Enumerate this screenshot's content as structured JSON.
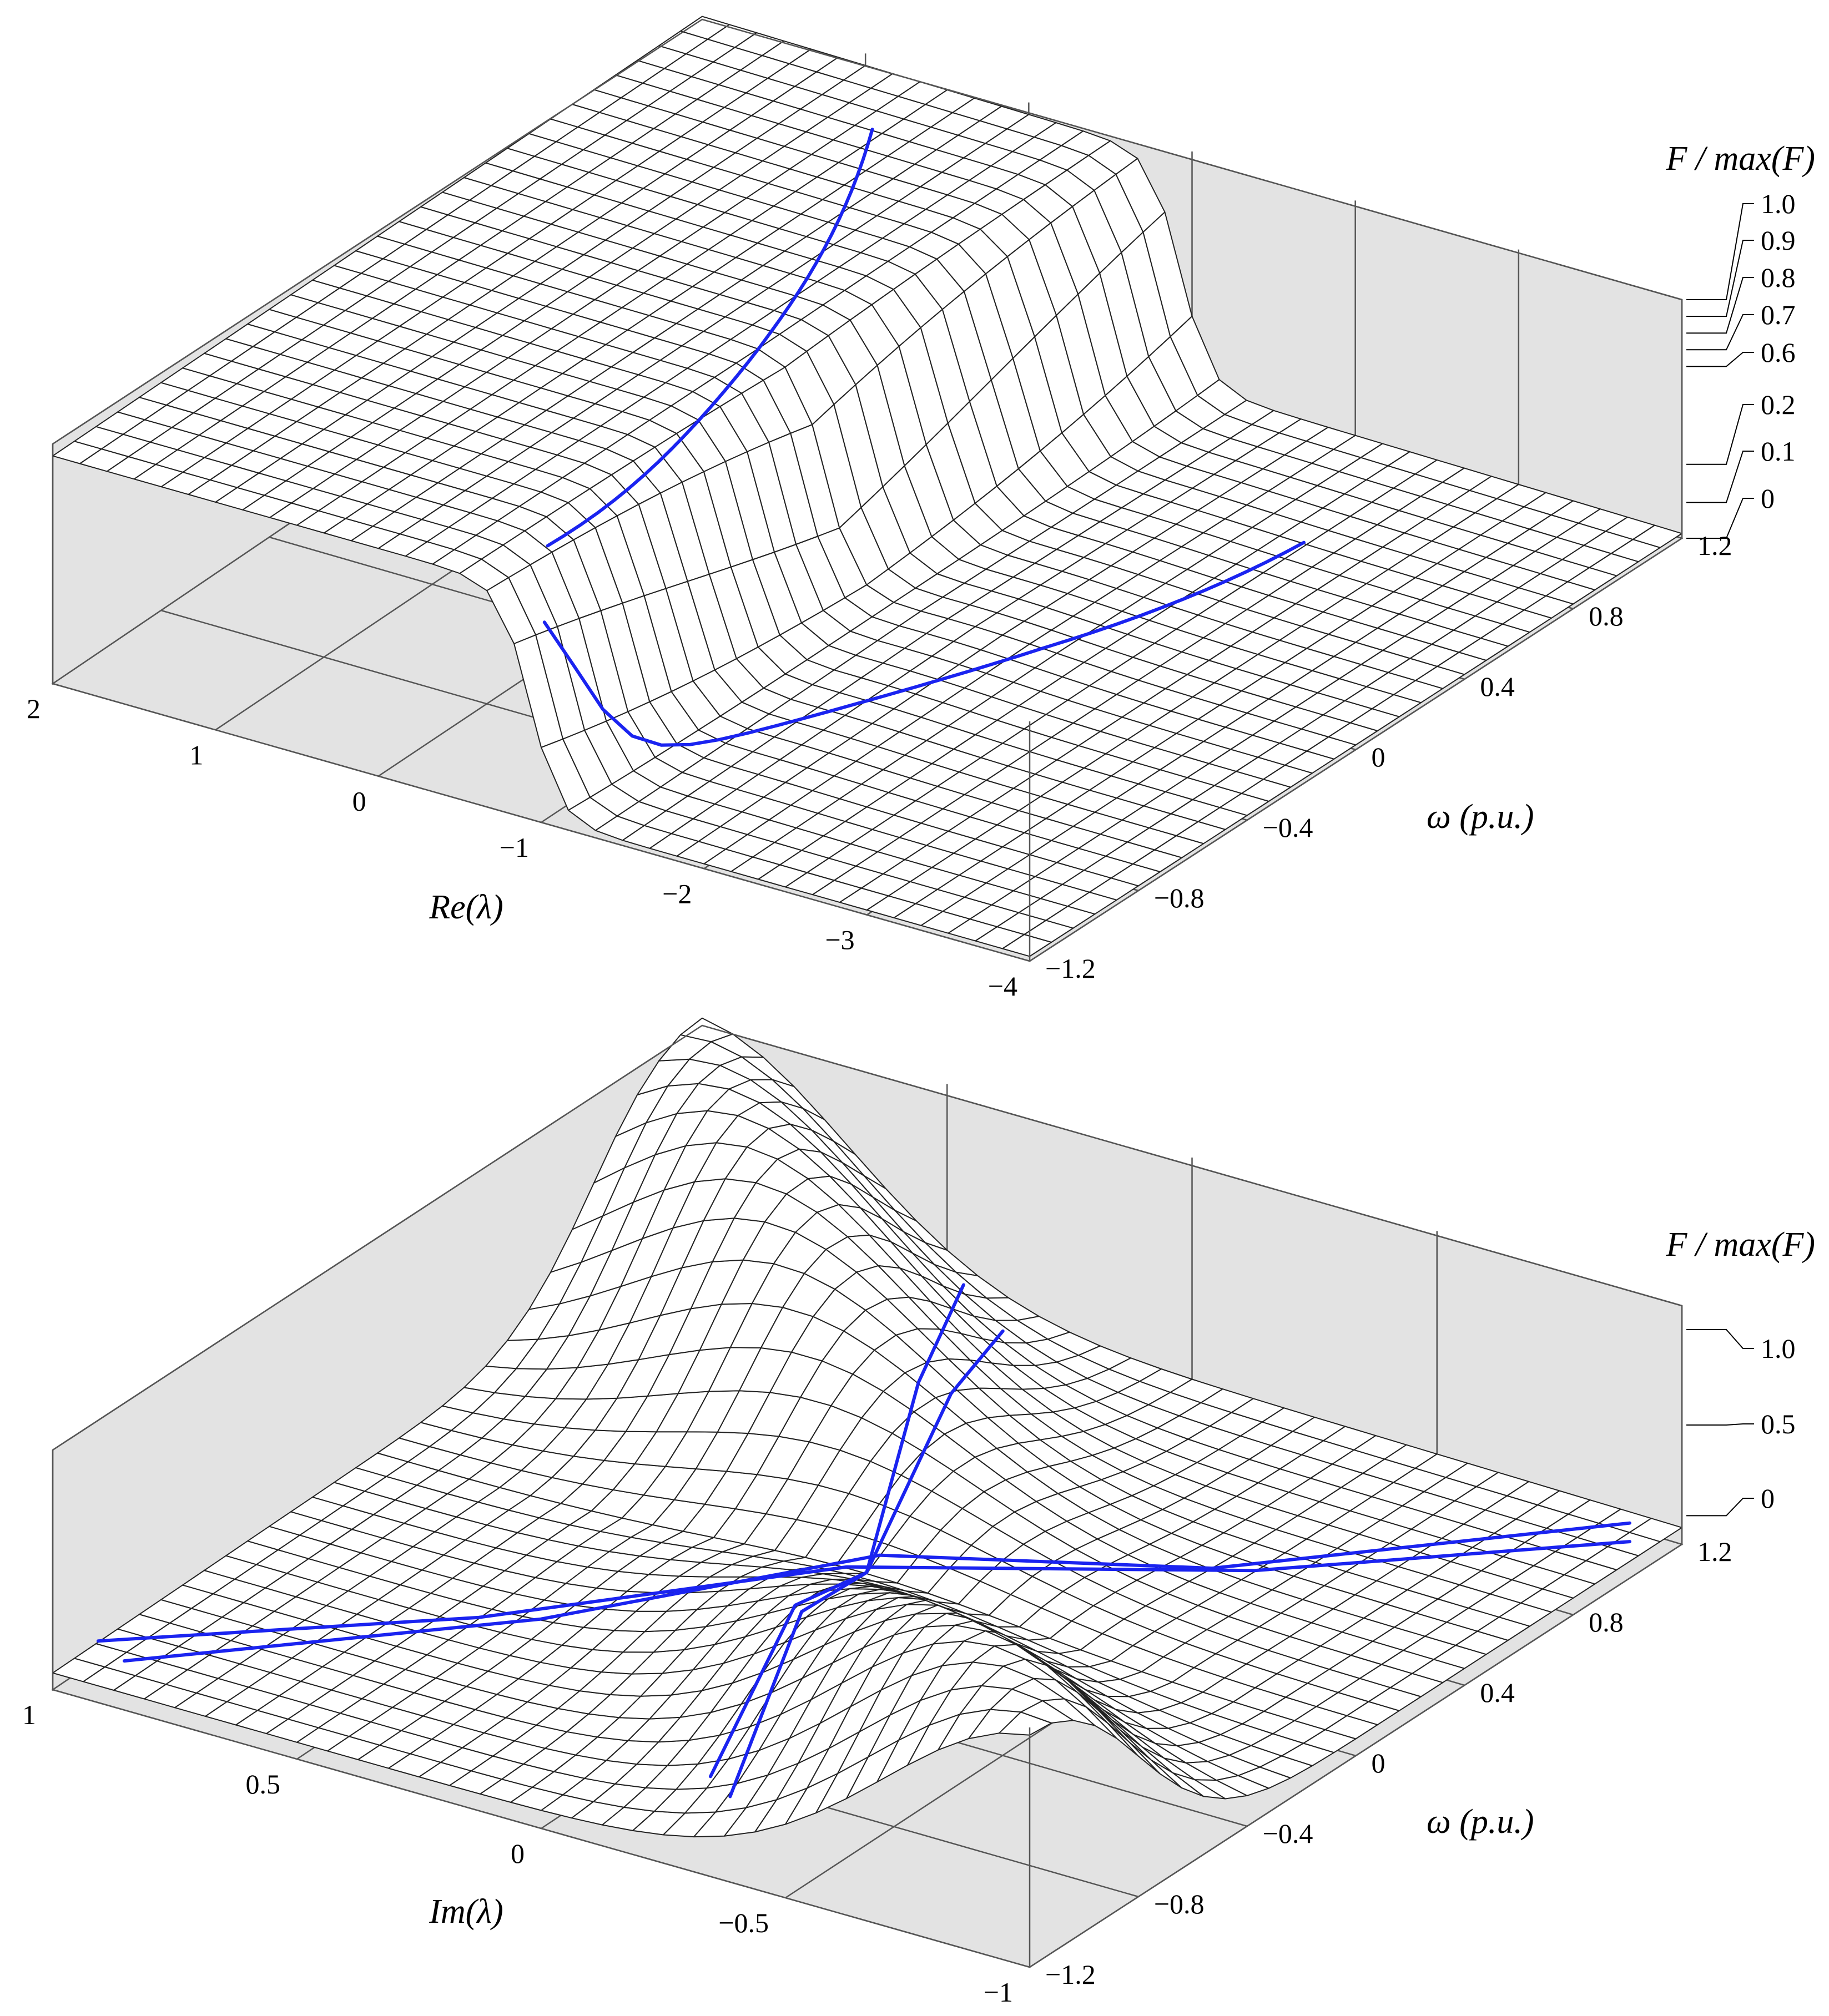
{
  "chart_data": [
    {
      "type": "surface",
      "x_axis": {
        "label": "Re(λ)",
        "ticks": [
          "2",
          "1",
          "0",
          "−1",
          "−2",
          "−3",
          "−4"
        ],
        "range": [
          -4,
          2
        ]
      },
      "y_axis": {
        "label": "ω (p.u.)",
        "ticks": [
          "−1.2",
          "−0.8",
          "−0.4",
          "0",
          "0.4",
          "0.8",
          "1.2"
        ],
        "range": [
          -1.2,
          1.2
        ]
      },
      "z_axis": {
        "label": "F / max(F)",
        "ticks": [
          "1.0",
          "0.9",
          "0.8",
          "0.7",
          "0.6",
          "0.2",
          "0.1",
          "0"
        ],
        "range": [
          0,
          1
        ]
      },
      "surface": "plateau near 1 for Re(λ) > −0.7, sharp drop to near 0 for Re(λ) < −1",
      "overlay_curve_color": "#1a23f0"
    },
    {
      "type": "surface",
      "x_axis": {
        "label": "Im(λ)",
        "ticks": [
          "1",
          "0.5",
          "0",
          "−0.5",
          "−1"
        ],
        "range": [
          -1,
          1
        ]
      },
      "y_axis": {
        "label": "ω (p.u.)",
        "ticks": [
          "−1.2",
          "−0.8",
          "−0.4",
          "0",
          "0.4",
          "0.8",
          "1.2"
        ],
        "range": [
          -1.2,
          1.2
        ]
      },
      "z_axis": {
        "label": "F / max(F)",
        "ticks": [
          "1.0",
          "0.5",
          "0"
        ],
        "range": [
          0,
          1
        ]
      },
      "surface": "smooth ridge along Im(λ) ≈ ω, low elsewhere",
      "overlay_curve_color": "#1a23f0"
    }
  ]
}
